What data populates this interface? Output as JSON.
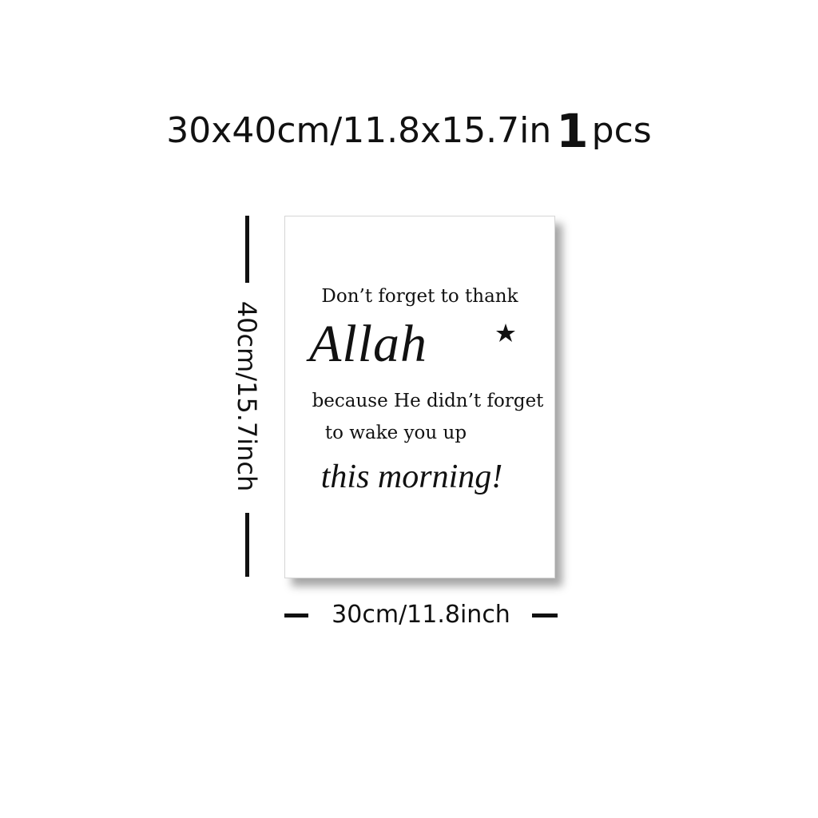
{
  "header": {
    "size_text": "30x40cm/11.8x15.7in",
    "quantity": "1",
    "unit": "pcs"
  },
  "poster": {
    "line1": "Don’t forget to thank",
    "line2": "Allah",
    "line3": "because He didn’t forget",
    "line4": "to wake you up",
    "line5": "this morning!",
    "icon": "crescent-moon-star-icon"
  },
  "dimensions": {
    "height_label": "40cm/15.7inch",
    "width_label": "30cm/11.8inch"
  },
  "colors": {
    "text": "#111111",
    "background": "#ffffff"
  }
}
